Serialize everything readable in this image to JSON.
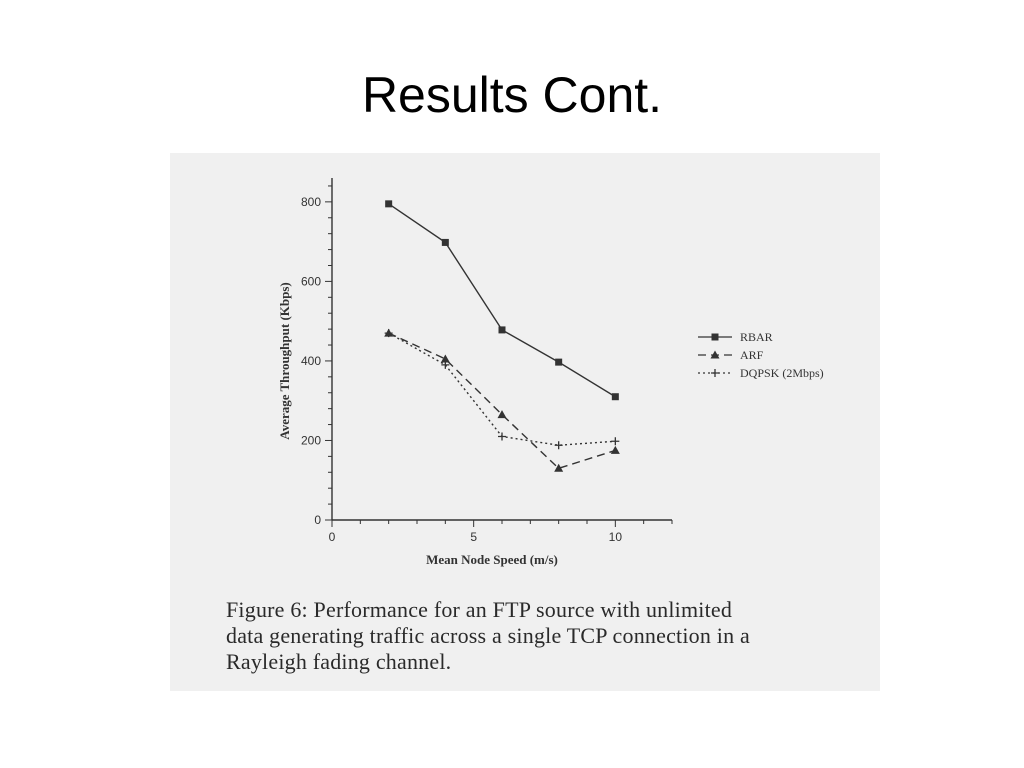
{
  "slide": {
    "title": "Results Cont."
  },
  "figure": {
    "caption_lines": [
      "Figure 6:  Performance for an FTP source with unlimited",
      "data generating traffic across a single TCP connection in a",
      "Rayleigh fading channel."
    ]
  },
  "chart_data": {
    "type": "line",
    "title": "",
    "xlabel": "Mean Node Speed (m/s)",
    "ylabel": "Average Throughput (Kbps)",
    "xlim": [
      0,
      12
    ],
    "ylim": [
      0,
      860
    ],
    "xticks": [
      0,
      5,
      10
    ],
    "yticks": [
      0,
      200,
      400,
      600,
      800
    ],
    "grid": false,
    "legend_position": "right",
    "x": [
      2,
      4,
      6,
      8,
      10
    ],
    "series": [
      {
        "name": "RBAR",
        "values": [
          795,
          698,
          478,
          397,
          310
        ],
        "line": "solid",
        "marker": "square"
      },
      {
        "name": "ARF",
        "values": [
          470,
          405,
          265,
          130,
          175
        ],
        "line": "dashed",
        "marker": "triangle"
      },
      {
        "name": "DQPSK (2Mbps)",
        "values": [
          470,
          390,
          210,
          188,
          198
        ],
        "line": "dotted",
        "marker": "plus"
      }
    ]
  }
}
